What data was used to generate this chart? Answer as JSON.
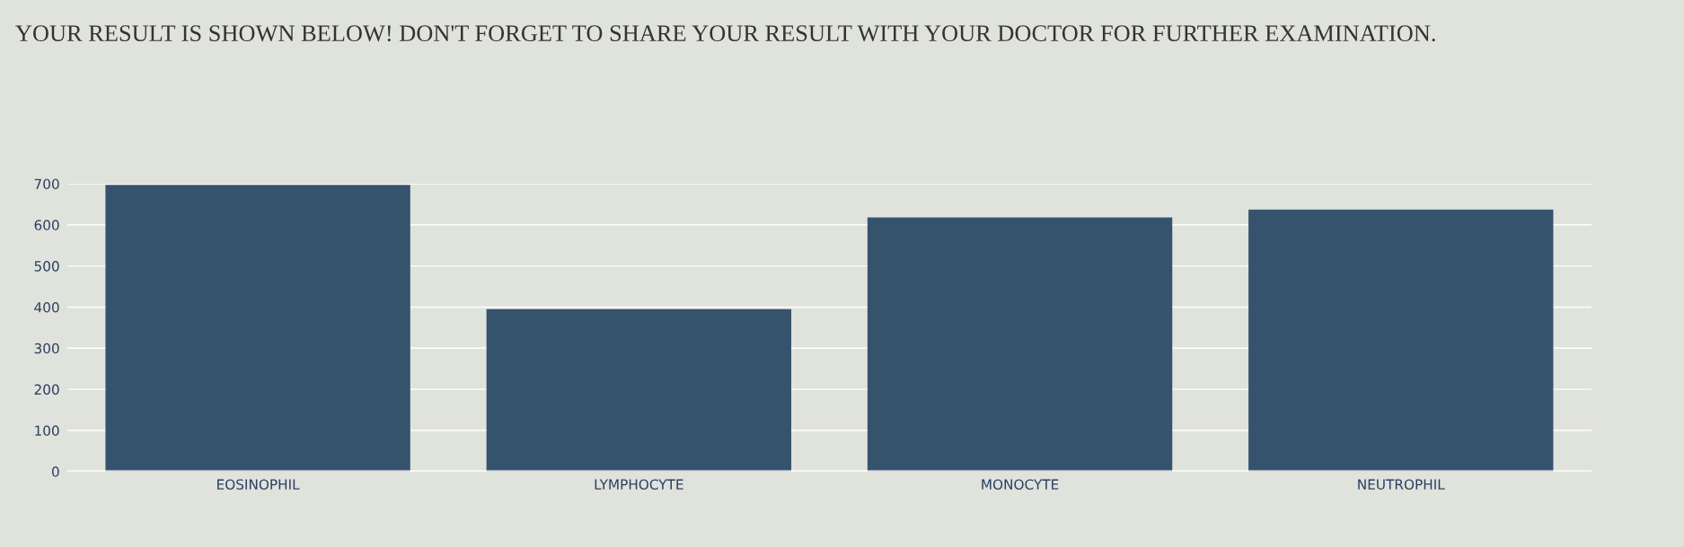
{
  "chart_data": {
    "type": "bar",
    "title": "YOUR RESULT IS SHOWN BELOW! DON'T FORGET TO SHARE YOUR RESULT WITH YOUR DOCTOR FOR FURTHER EXAMINATION.",
    "categories": [
      "EOSINOPHIL",
      "LYMPHOCYTE",
      "MONOCYTE",
      "NEUTROPHIL"
    ],
    "values": [
      697,
      395,
      618,
      637
    ],
    "color": "#36536e",
    "ylim": [
      0,
      700
    ],
    "yticks": [
      0,
      100,
      200,
      300,
      400,
      500,
      600,
      700
    ],
    "grid": "y"
  }
}
